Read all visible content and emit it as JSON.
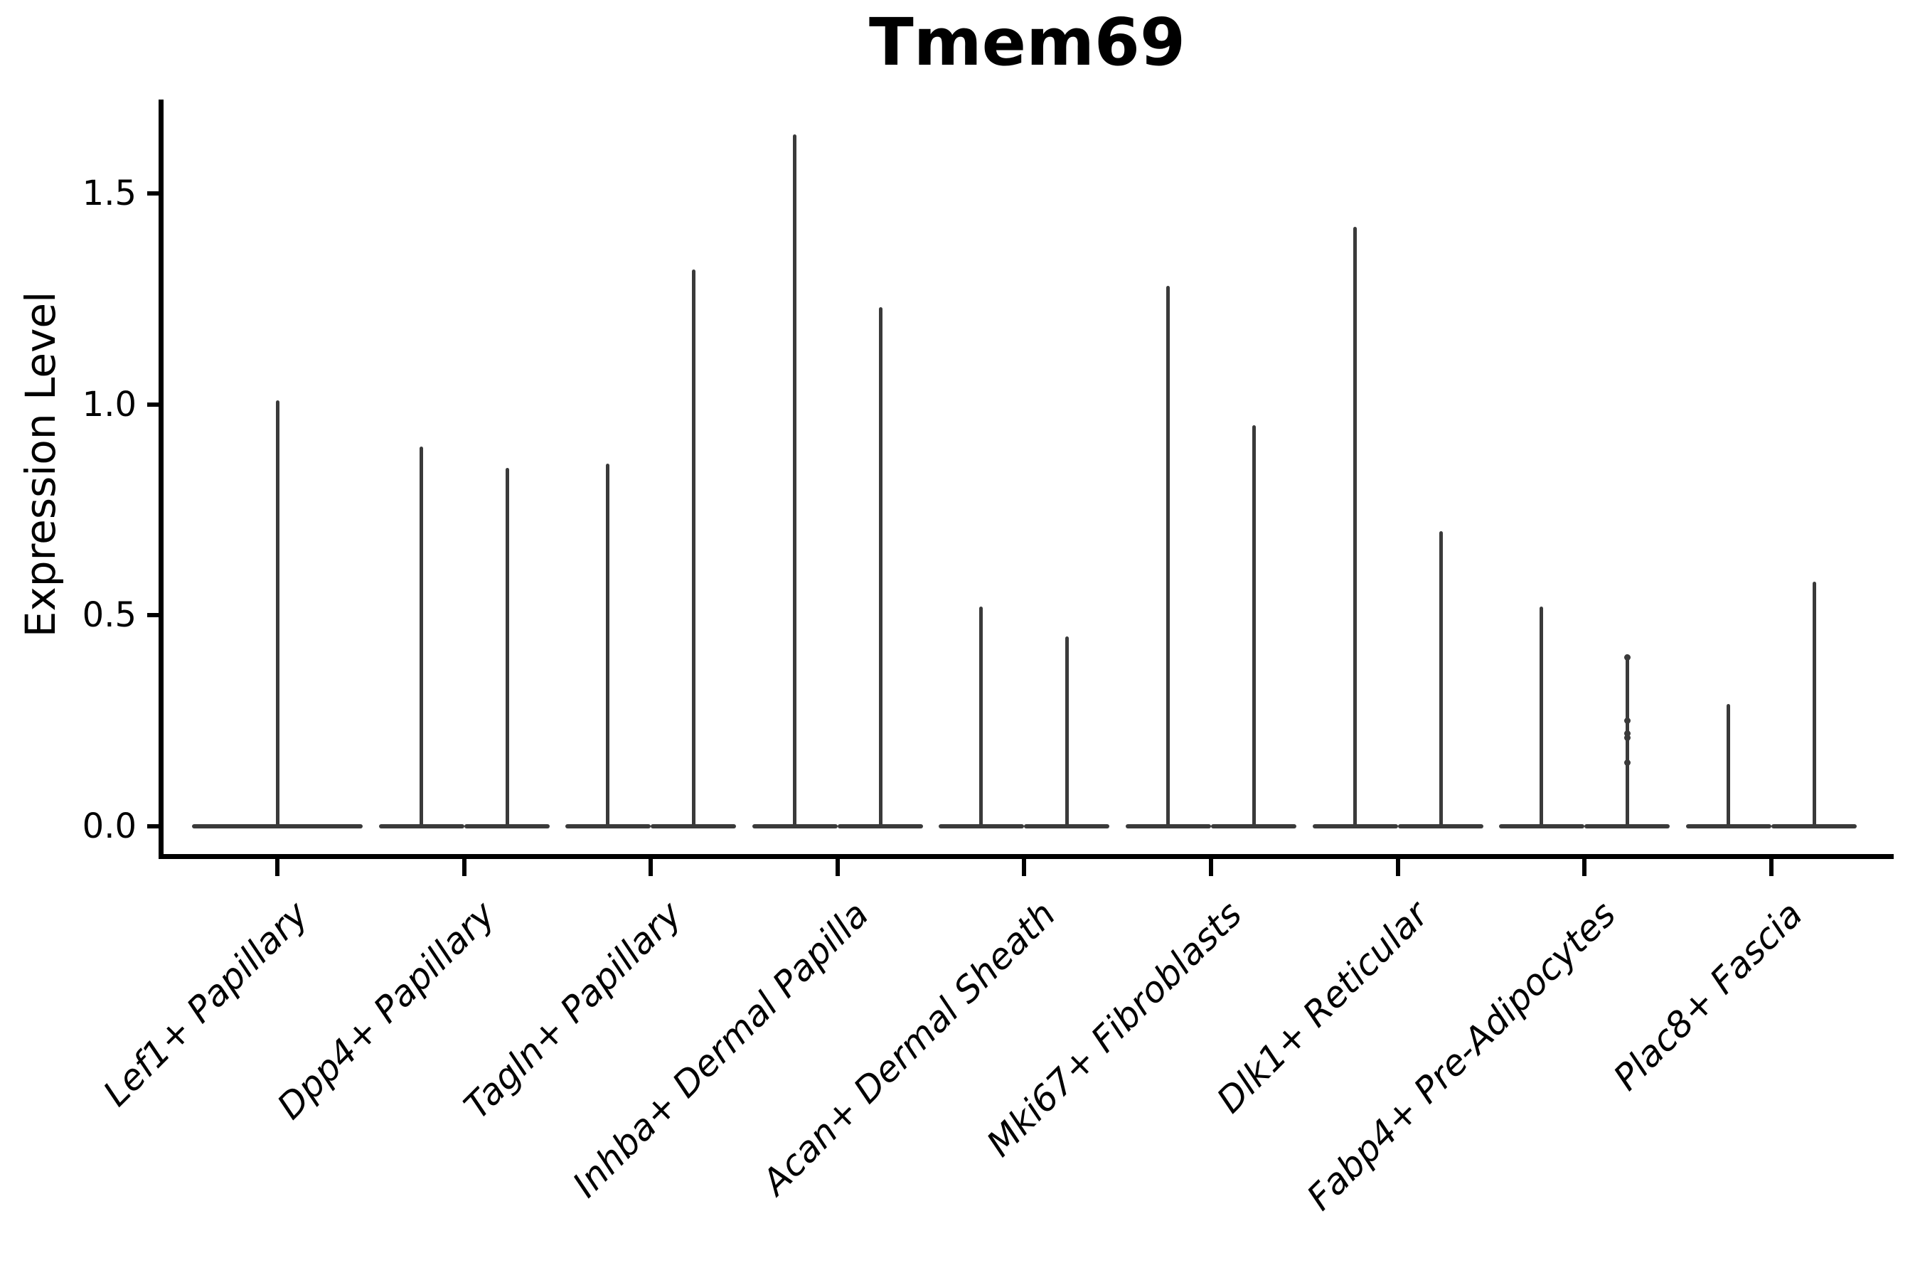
{
  "chart_data": {
    "type": "violin",
    "title": "Tmem69",
    "ylabel": "Expression Level",
    "xlabel": "",
    "ylim": [
      -0.07,
      1.72
    ],
    "grid": false,
    "legend": "none",
    "yticks": [
      {
        "label": "0.0",
        "value": 0.0
      },
      {
        "label": "0.5",
        "value": 0.5
      },
      {
        "label": "1.0",
        "value": 1.0
      },
      {
        "label": "1.5",
        "value": 1.5
      }
    ],
    "categories": [
      "Lef1+ Papillary",
      "Dpp4+ Papillary",
      "Tagln+ Papillary",
      "Inhba+ Dermal Papilla",
      "Acan+ Dermal Sheath",
      "Mki67+ Fibroblasts",
      "Dlk1+ Reticular",
      "Fabp4+ Pre-Adipocytes",
      "Plac8+ Fascia"
    ],
    "groups": [
      {
        "category": "Lef1+ Papillary",
        "violins": [
          {
            "max": 1.01,
            "points": []
          }
        ]
      },
      {
        "category": "Dpp4+ Papillary",
        "violins": [
          {
            "max": 0.9,
            "points": []
          },
          {
            "max": 0.85,
            "points": []
          }
        ]
      },
      {
        "category": "Tagln+ Papillary",
        "violins": [
          {
            "max": 0.86,
            "points": []
          },
          {
            "max": 1.32,
            "points": []
          }
        ]
      },
      {
        "category": "Inhba+ Dermal Papilla",
        "violins": [
          {
            "max": 1.64,
            "points": []
          },
          {
            "max": 1.23,
            "points": []
          }
        ]
      },
      {
        "category": "Acan+ Dermal Sheath",
        "violins": [
          {
            "max": 0.52,
            "points": []
          },
          {
            "max": 0.45,
            "points": []
          }
        ]
      },
      {
        "category": "Mki67+ Fibroblasts",
        "violins": [
          {
            "max": 1.28,
            "points": []
          },
          {
            "max": 0.95,
            "points": []
          }
        ]
      },
      {
        "category": "Dlk1+ Reticular",
        "violins": [
          {
            "max": 1.42,
            "points": []
          },
          {
            "max": 0.7,
            "points": []
          }
        ]
      },
      {
        "category": "Fabp4+ Pre-Adipocytes",
        "violins": [
          {
            "max": 0.52,
            "points": []
          },
          {
            "max": 0.4,
            "points": [
              0.4,
              0.25,
              0.22,
              0.21,
              0.15
            ]
          }
        ]
      },
      {
        "category": "Plac8+ Fascia",
        "violins": [
          {
            "max": 0.29,
            "points": []
          },
          {
            "max": 0.58,
            "points": []
          }
        ]
      }
    ],
    "colors": {
      "violin": "#3a3a3a",
      "axis": "#000000",
      "text": "#000000",
      "background": "#ffffff"
    }
  }
}
